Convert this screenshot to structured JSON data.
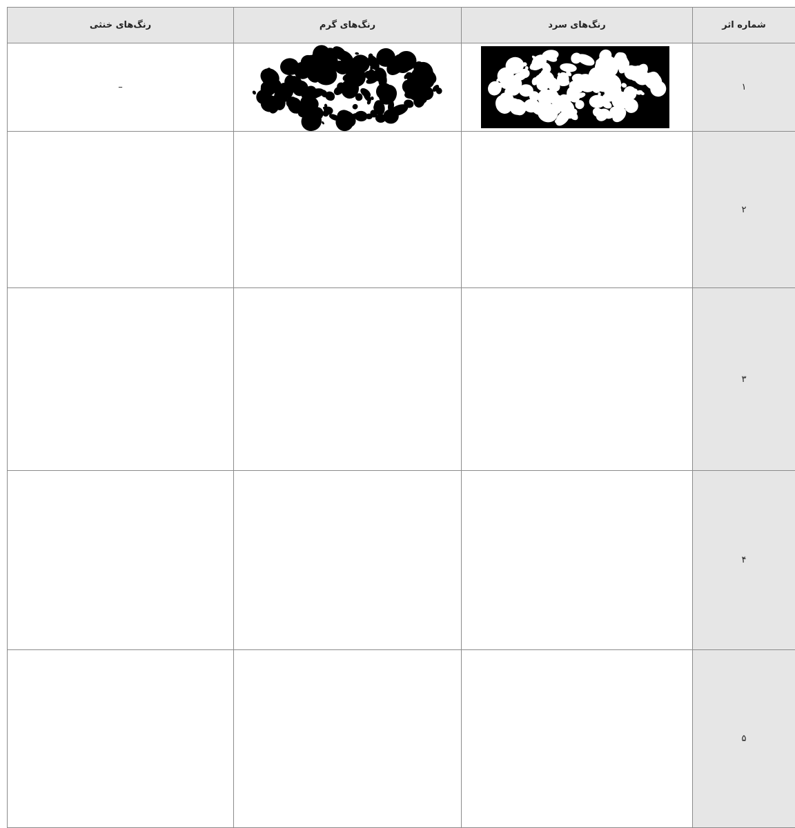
{
  "table": {
    "header": [
      "شماره اثر",
      "رنگ‌های سرد",
      "رنگ‌های گرم",
      "رنگ‌های خنثی"
    ],
    "rows": [
      {
        "number": "۱",
        "neutral": "–"
      },
      {
        "number": "۲"
      },
      {
        "number": "۳"
      },
      {
        "number": "۴"
      },
      {
        "number": "۵"
      }
    ]
  }
}
